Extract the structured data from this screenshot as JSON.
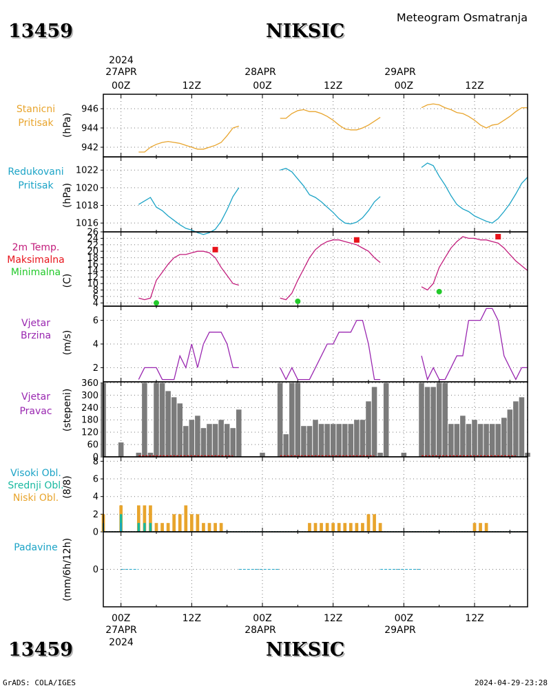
{
  "header": {
    "station_id": "13459",
    "station_name": "NIKSIC",
    "subtitle": "Meteogram Osmatranja"
  },
  "footer": {
    "left": "GrADS: COLA/IGES",
    "right": "2024-04-29-23:28"
  },
  "time_axis": {
    "top_year": "2024",
    "bottom_year": "2024",
    "day_labels": [
      "27APR",
      "28APR",
      "29APR"
    ],
    "hour_labels": [
      "00Z",
      "12Z",
      "00Z",
      "12Z",
      "00Z",
      "12Z"
    ],
    "x_range_hours": [
      -3,
      69
    ],
    "x_unit": "hours since 2024-04-27 00Z"
  },
  "panels": {
    "station_pressure": {
      "labels": [
        "Stanicni",
        "Pritisak"
      ],
      "unit": "(hPa)",
      "color": "#e8a42c"
    },
    "reduced_pressure": {
      "labels": [
        "Redukovani",
        "Pritisak"
      ],
      "unit": "(hPa)",
      "color": "#1ba3c6"
    },
    "temperature": {
      "labels": [
        "2m Temp.",
        "Maksimalna",
        "Minimalna"
      ],
      "unit": "(C)",
      "colors": [
        "#c21b7b",
        "#e8131b",
        "#22c92a"
      ]
    },
    "wind_speed": {
      "labels": [
        "Vjetar",
        "Brzina"
      ],
      "unit": "(m/s)",
      "color": "#9926b0"
    },
    "wind_direction": {
      "labels": [
        "Vjetar",
        "Pravac"
      ],
      "unit": "(stepeni)",
      "color": "#9926b0"
    },
    "clouds": {
      "labels": [
        "Visoki Obl.",
        "Srednji Obl.",
        "Niski Obl."
      ],
      "unit": "(8/8)",
      "colors": [
        "#1ba3c6",
        "#18b9a0",
        "#e8a42c"
      ]
    },
    "precip": {
      "labels": [
        "Padavine"
      ],
      "unit": "(mm/6h/12h)",
      "color": "#1ba3c6"
    }
  },
  "chart_data": [
    {
      "type": "line",
      "panel": "station_pressure",
      "ylim": [
        941,
        947.5
      ],
      "yticks": [
        942,
        944,
        946
      ],
      "segments": [
        {
          "x": [
            3,
            4,
            5,
            6,
            7,
            8,
            9,
            10,
            11,
            12,
            13,
            14,
            15,
            16,
            17,
            18,
            19,
            20
          ],
          "y": [
            941.5,
            941.5,
            942.0,
            942.3,
            942.5,
            942.6,
            942.5,
            942.4,
            942.2,
            942.0,
            941.8,
            941.8,
            942.0,
            942.2,
            942.5,
            943.2,
            944.0,
            944.2
          ]
        },
        {
          "x": [
            27,
            28,
            29,
            30,
            31,
            32,
            33,
            34,
            35,
            36,
            37,
            38,
            39,
            40,
            41,
            42,
            43,
            44
          ],
          "y": [
            945.0,
            945.0,
            945.5,
            945.8,
            945.9,
            945.7,
            945.7,
            945.5,
            945.2,
            944.8,
            944.3,
            943.9,
            943.8,
            943.8,
            944.0,
            944.3,
            944.7,
            945.1
          ]
        },
        {
          "x": [
            51,
            52,
            53,
            54,
            55,
            56,
            57,
            58,
            59,
            60,
            61,
            62,
            63,
            64,
            65,
            66,
            67,
            68,
            69
          ],
          "y": [
            946.1,
            946.4,
            946.5,
            946.4,
            946.1,
            945.9,
            945.6,
            945.5,
            945.2,
            944.8,
            944.3,
            944.0,
            944.3,
            944.4,
            944.8,
            945.2,
            945.7,
            946.1,
            946.1
          ]
        }
      ]
    },
    {
      "type": "line",
      "panel": "reduced_pressure",
      "ylim": [
        1015,
        1023.5
      ],
      "yticks": [
        1016,
        1018,
        1020,
        1022
      ],
      "segments": [
        {
          "x": [
            3,
            4,
            5,
            6,
            7,
            8,
            9,
            10,
            11,
            12,
            13,
            14,
            15,
            16,
            17,
            18,
            19,
            20
          ],
          "y": [
            1018.1,
            1018.5,
            1018.9,
            1017.8,
            1017.4,
            1016.8,
            1016.3,
            1015.8,
            1015.4,
            1015.2,
            1014.9,
            1014.7,
            1014.9,
            1015.3,
            1016.2,
            1017.5,
            1019.0,
            1020.0
          ]
        },
        {
          "x": [
            27,
            28,
            29,
            30,
            31,
            32,
            33,
            34,
            35,
            36,
            37,
            38,
            39,
            40,
            41,
            42,
            43,
            44
          ],
          "y": [
            1022.0,
            1022.2,
            1021.8,
            1021.0,
            1020.2,
            1019.2,
            1018.9,
            1018.4,
            1017.8,
            1017.2,
            1016.5,
            1016.0,
            1015.9,
            1016.1,
            1016.6,
            1017.4,
            1018.4,
            1019.0
          ]
        },
        {
          "x": [
            51,
            52,
            53,
            54,
            55,
            56,
            57,
            58,
            59,
            60,
            61,
            62,
            63,
            64,
            65,
            66,
            67,
            68,
            69
          ],
          "y": [
            1022.3,
            1022.8,
            1022.5,
            1021.3,
            1020.3,
            1019.1,
            1018.1,
            1017.6,
            1017.3,
            1016.8,
            1016.5,
            1016.2,
            1016.0,
            1016.5,
            1017.3,
            1018.2,
            1019.3,
            1020.5,
            1021.2
          ]
        }
      ]
    },
    {
      "type": "line",
      "panel": "temperature",
      "ylim": [
        3,
        26
      ],
      "yticks": [
        4,
        6,
        8,
        10,
        12,
        14,
        16,
        18,
        20,
        22,
        24,
        26
      ],
      "segments": [
        {
          "x": [
            3,
            4,
            5,
            6,
            7,
            8,
            9,
            10,
            11,
            12,
            13,
            14,
            15,
            16,
            17,
            18,
            19,
            20
          ],
          "y": [
            5.5,
            5.0,
            5.5,
            11.0,
            13.5,
            16.0,
            18.0,
            19.0,
            19.0,
            19.5,
            20.0,
            20.0,
            19.5,
            18.0,
            15.0,
            12.5,
            10.0,
            9.5
          ]
        },
        {
          "x": [
            27,
            28,
            29,
            30,
            31,
            32,
            33,
            34,
            35,
            36,
            37,
            38,
            39,
            40,
            41,
            42,
            43,
            44
          ],
          "y": [
            5.5,
            5.0,
            7.0,
            11.0,
            14.5,
            18.0,
            20.5,
            22.0,
            23.0,
            23.5,
            23.5,
            23.0,
            22.5,
            22.0,
            21.0,
            20.0,
            18.0,
            16.5
          ]
        },
        {
          "x": [
            51,
            52,
            53,
            54,
            55,
            56,
            57,
            58,
            59,
            60,
            61,
            62,
            63,
            64,
            65,
            66,
            67,
            68,
            69
          ],
          "y": [
            9.0,
            8.0,
            10.0,
            15.0,
            18.0,
            21.0,
            23.0,
            24.5,
            24.0,
            24.0,
            23.5,
            23.5,
            23.0,
            22.5,
            21.0,
            19.0,
            17.0,
            15.5,
            14.0
          ]
        }
      ],
      "max_points": [
        {
          "x": 16,
          "y": 20.5
        },
        {
          "x": 40,
          "y": 23.5
        },
        {
          "x": 64,
          "y": 24.5
        }
      ],
      "min_points": [
        {
          "x": 6,
          "y": 4.0
        },
        {
          "x": 30,
          "y": 4.5
        },
        {
          "x": 54,
          "y": 7.5
        }
      ]
    },
    {
      "type": "line",
      "panel": "wind_speed",
      "ylim": [
        0.8,
        7.2
      ],
      "yticks": [
        2,
        4,
        6
      ],
      "segments": [
        {
          "x": [
            3,
            4,
            5,
            6,
            7,
            8,
            9,
            10,
            11,
            12,
            13,
            14,
            15,
            16,
            17,
            18,
            19,
            20
          ],
          "y": [
            1,
            2,
            2,
            2,
            1,
            1,
            1,
            3,
            2,
            4,
            2,
            4,
            5,
            5,
            5,
            4,
            2,
            2
          ]
        },
        {
          "x": [
            27,
            28,
            29,
            30,
            31,
            32,
            33,
            34,
            35,
            36,
            37,
            38,
            39,
            40,
            41,
            42,
            43,
            44
          ],
          "y": [
            2,
            1,
            2,
            1,
            1,
            1,
            2,
            3,
            4,
            4,
            5,
            5,
            5,
            6,
            6,
            4,
            1,
            1
          ]
        },
        {
          "x": [
            51,
            52,
            53,
            54,
            55,
            56,
            57,
            58,
            59,
            60,
            61,
            62,
            63,
            64,
            65,
            66,
            67,
            68,
            69
          ],
          "y": [
            3,
            1,
            2,
            1,
            1,
            2,
            3,
            3,
            6,
            6,
            6,
            7,
            7,
            6,
            3,
            2,
            1,
            2,
            2
          ]
        }
      ]
    },
    {
      "type": "bar",
      "panel": "wind_direction",
      "ylim": [
        0,
        365
      ],
      "yticks": [
        0,
        60,
        120,
        180,
        240,
        300,
        360
      ],
      "x": [
        -3,
        0,
        3,
        4,
        5,
        6,
        7,
        8,
        9,
        10,
        11,
        12,
        13,
        14,
        15,
        16,
        17,
        18,
        19,
        20,
        24,
        27,
        28,
        29,
        30,
        31,
        32,
        33,
        34,
        35,
        36,
        37,
        38,
        39,
        40,
        41,
        42,
        43,
        44,
        45,
        48,
        51,
        52,
        53,
        54,
        55,
        56,
        57,
        58,
        59,
        60,
        61,
        62,
        63,
        64,
        65,
        66,
        67,
        68,
        69
      ],
      "values": [
        360,
        70,
        20,
        360,
        20,
        360,
        360,
        320,
        290,
        260,
        150,
        180,
        200,
        140,
        160,
        160,
        180,
        160,
        140,
        230,
        20,
        360,
        110,
        360,
        360,
        150,
        150,
        180,
        160,
        160,
        160,
        160,
        160,
        160,
        180,
        180,
        270,
        340,
        20,
        360,
        20,
        360,
        340,
        340,
        360,
        360,
        160,
        160,
        200,
        160,
        180,
        160,
        160,
        160,
        160,
        190,
        230,
        270,
        290,
        20
      ],
      "calm_segments": [
        [
          3,
          19
        ],
        [
          27,
          43
        ],
        [
          51,
          67
        ]
      ]
    },
    {
      "type": "bar",
      "panel": "clouds",
      "ylim": [
        0,
        8.5
      ],
      "yticks": [
        0,
        2,
        4,
        6,
        8
      ],
      "series": [
        {
          "name": "Niski Obl.",
          "x": [
            -3,
            0,
            3,
            4,
            5,
            6,
            7,
            8,
            9,
            10,
            11,
            12,
            13,
            14,
            15,
            16,
            17,
            32,
            33,
            34,
            35,
            36,
            37,
            38,
            39,
            40,
            41,
            42,
            43,
            44,
            60,
            61,
            62
          ],
          "values": [
            2,
            3,
            3,
            3,
            3,
            1,
            1,
            1,
            2,
            2,
            3,
            2,
            2,
            1,
            1,
            1,
            1,
            1,
            1,
            1,
            1,
            1,
            1,
            1,
            1,
            1,
            1,
            2,
            2,
            1,
            1,
            1,
            1
          ]
        },
        {
          "name": "Srednji Obl.",
          "x": [
            0,
            3,
            4,
            5
          ],
          "values": [
            2,
            1,
            1,
            1
          ]
        },
        {
          "name": "Visoki Obl.",
          "x": [
            -3,
            0
          ],
          "values": [
            1,
            1
          ]
        }
      ]
    },
    {
      "type": "bar",
      "panel": "precip",
      "ylim": [
        -1,
        1
      ],
      "yticks": [
        0
      ],
      "x": [
        0,
        3,
        20,
        27,
        44,
        51,
        69
      ],
      "values": [
        0,
        0,
        0,
        0,
        0,
        0,
        0
      ]
    }
  ]
}
